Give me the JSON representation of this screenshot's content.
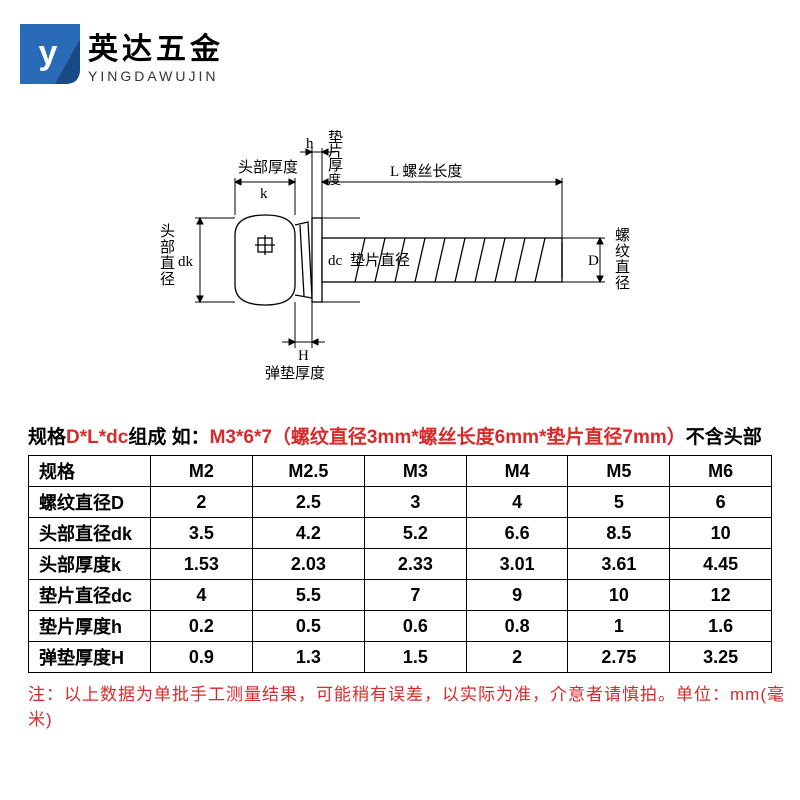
{
  "brand": {
    "cn": "英达五金",
    "en": "YINGDAWUJIN",
    "logo_color": "#2a6bb8"
  },
  "diagram_labels": {
    "head_thickness": "头部厚度",
    "k": "k",
    "h": "h",
    "washer_thickness": "垫\n片\n厚\n度",
    "screw_length": "L 螺丝长度",
    "head_diameter": "头\n部\n直\n径",
    "dk": "dk",
    "dc": "dc",
    "washer_diameter": "垫片直径",
    "thread_diameter": "螺\n纹\n直\n径",
    "D": "D",
    "H": "H",
    "spring_washer_thickness": "弹垫厚度"
  },
  "spec": {
    "prefix": "规格",
    "red1": "D*L*dc",
    "mid": "组成 如：",
    "red2": "M3*6*7（螺纹直径3mm*螺丝长度6mm*垫片直径7mm）",
    "suffix": "不含头部"
  },
  "table": {
    "header": [
      "规格",
      "M2",
      "M2.5",
      "M3",
      "M4",
      "M5",
      "M6"
    ],
    "rows": [
      {
        "label": "螺纹直径D",
        "vals": [
          "2",
          "2.5",
          "3",
          "4",
          "5",
          "6"
        ]
      },
      {
        "label": "头部直径dk",
        "vals": [
          "3.5",
          "4.2",
          "5.2",
          "6.6",
          "8.5",
          "10"
        ]
      },
      {
        "label": "头部厚度k",
        "vals": [
          "1.53",
          "2.03",
          "2.33",
          "3.01",
          "3.61",
          "4.45"
        ]
      },
      {
        "label": "垫片直径dc",
        "vals": [
          "4",
          "5.5",
          "7",
          "9",
          "10",
          "12"
        ]
      },
      {
        "label": "垫片厚度h",
        "vals": [
          "0.2",
          "0.5",
          "0.6",
          "0.8",
          "1",
          "1.6"
        ]
      },
      {
        "label": "弹垫厚度H",
        "vals": [
          "0.9",
          "1.3",
          "1.5",
          "2",
          "2.75",
          "3.25"
        ]
      }
    ],
    "border_color": "#000000",
    "text_color": "#000000",
    "font_size": 18
  },
  "note": "注：以上数据为单批手工测量结果，可能稍有误差，以实际为准，介意者请慎拍。单位：mm(毫米)",
  "colors": {
    "red": "#d82a2a",
    "black": "#000000",
    "bg": "#ffffff",
    "logo": "#2a6bb8"
  }
}
